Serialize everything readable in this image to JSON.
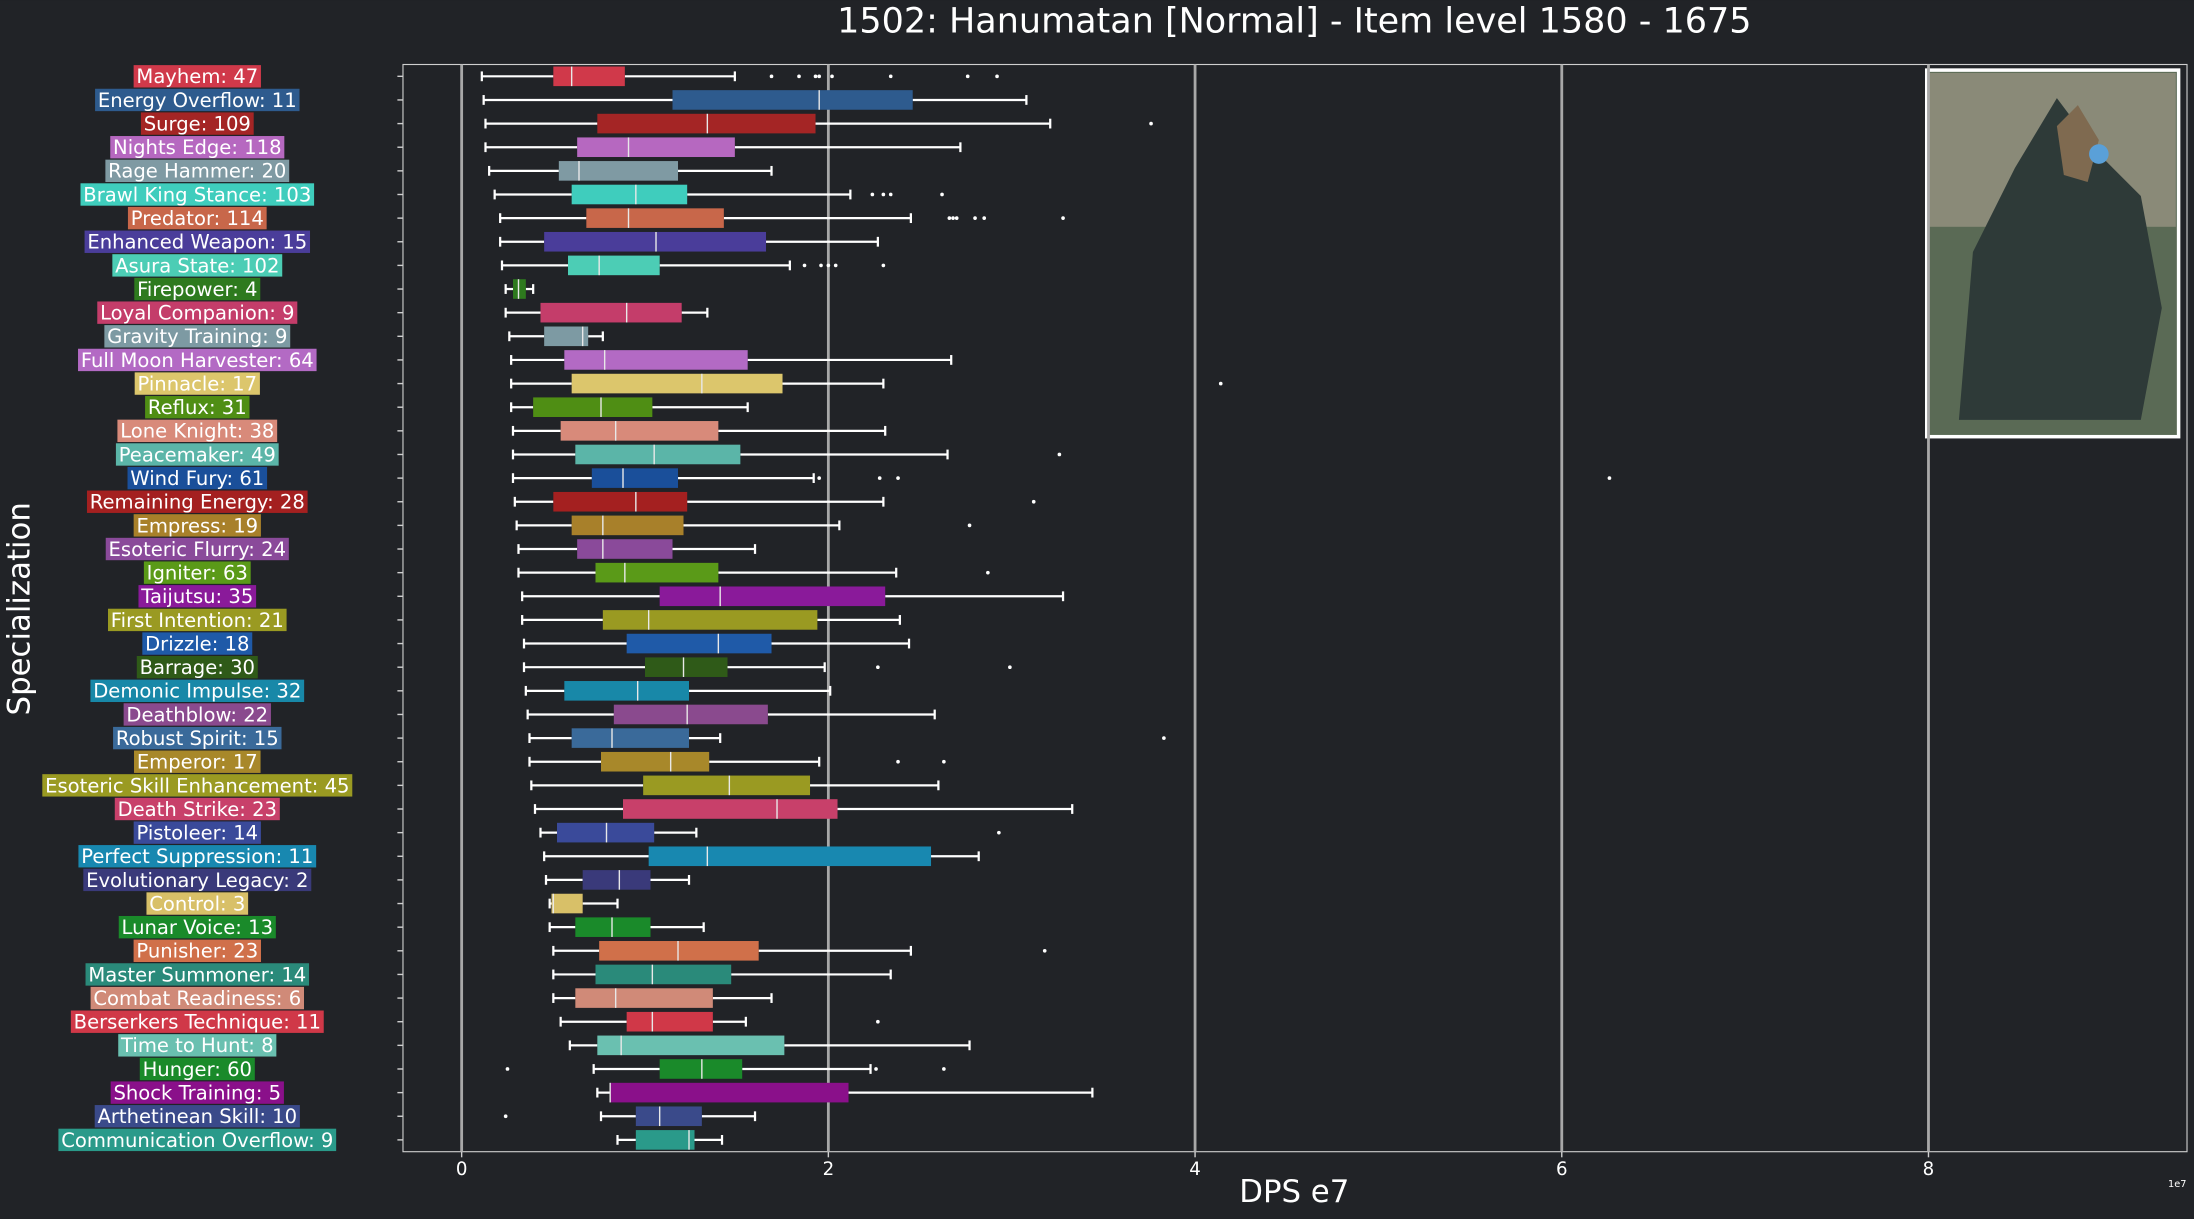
{
  "chart_data": {
    "type": "boxplot",
    "title": "1502: Hanumatan [Normal] - Item level 1580 - 1675",
    "xlabel": "DPS e7",
    "ylabel": "Specialization",
    "x_offset_label": "1e7",
    "xlim": [
      -0.32,
      9.41
    ],
    "xticks": [
      0,
      2,
      4,
      6,
      8
    ],
    "grid": true,
    "orientation": "horizontal",
    "categories": [
      "Mayhem: 47",
      "Energy Overflow: 11",
      "Surge: 109",
      "Nights Edge: 118",
      "Rage Hammer: 20",
      "Brawl King Stance: 103",
      "Predator: 114",
      "Enhanced Weapon: 15",
      "Asura State: 102",
      "Firepower: 4",
      "Loyal Companion: 9",
      "Gravity Training: 9",
      "Full Moon Harvester: 64",
      "Pinnacle: 17",
      "Reflux: 31",
      "Lone Knight: 38",
      "Peacemaker: 49",
      "Wind Fury: 61",
      "Remaining Energy: 28",
      "Empress: 19",
      "Esoteric Flurry: 24",
      "Igniter: 63",
      "Taijutsu: 35",
      "First Intention: 21",
      "Drizzle: 18",
      "Barrage: 30",
      "Demonic Impulse: 32",
      "Deathblow: 22",
      "Robust Spirit: 15",
      "Emperor: 17",
      "Esoteric Skill Enhancement: 45",
      "Death Strike: 23",
      "Pistoleer: 14",
      "Perfect Suppression: 11",
      "Evolutionary Legacy: 2",
      "Control: 3",
      "Lunar Voice: 13",
      "Punisher: 23",
      "Master Summoner: 14",
      "Combat Readiness: 6",
      "Berserkers Technique: 11",
      "Time to Hunt: 8",
      "Hunger: 60",
      "Shock Training: 5",
      "Arthetinean Skill: 10",
      "Communication Overflow: 9"
    ],
    "colors": [
      "#d0394a",
      "#2e5b8e",
      "#a42525",
      "#b668c0",
      "#7f9aa3",
      "#3fcdbd",
      "#c8674a",
      "#4a3d9a",
      "#4ccdb5",
      "#2e7a1e",
      "#c43d6a",
      "#7d9aa3",
      "#b36ac4",
      "#dcc66c",
      "#4f8e14",
      "#d88a7a",
      "#5bb5a8",
      "#1a4f9a",
      "#a42020",
      "#a8802a",
      "#8a4a9a",
      "#5a9a18",
      "#8a1a9a",
      "#9a9a22",
      "#1f5aa8",
      "#2f5a18",
      "#1888a8",
      "#8a4a8e",
      "#3a6a9a",
      "#a8882a",
      "#9a9a22",
      "#c8406a",
      "#3a4a9a",
      "#1888b0",
      "#3a3a7a",
      "#d8c068",
      "#1a8a2a",
      "#d0704a",
      "#2a8a7a",
      "#d08a78",
      "#d03848",
      "#6ac0b0",
      "#1a8a2a",
      "#8a108a",
      "#3a4a8a",
      "#2a9a8a"
    ],
    "boxes": [
      {
        "whislo": 0.11,
        "q1": 0.5,
        "med": 0.6,
        "q3": 0.89,
        "whishi": 1.49,
        "fliers": [
          1.69,
          1.84,
          1.93,
          1.95,
          2.02,
          2.34,
          2.76,
          2.92
        ]
      },
      {
        "whislo": 0.12,
        "q1": 1.15,
        "med": 1.95,
        "q3": 2.46,
        "whishi": 3.08,
        "fliers": []
      },
      {
        "whislo": 0.13,
        "q1": 0.74,
        "med": 1.34,
        "q3": 1.93,
        "whishi": 3.21,
        "fliers": [
          3.76
        ]
      },
      {
        "whislo": 0.13,
        "q1": 0.63,
        "med": 0.91,
        "q3": 1.49,
        "whishi": 2.72,
        "fliers": []
      },
      {
        "whislo": 0.15,
        "q1": 0.53,
        "med": 0.64,
        "q3": 1.18,
        "whishi": 1.69,
        "fliers": []
      },
      {
        "whislo": 0.18,
        "q1": 0.6,
        "med": 0.95,
        "q3": 1.23,
        "whishi": 2.12,
        "fliers": [
          2.24,
          2.3,
          2.34,
          2.62
        ]
      },
      {
        "whislo": 0.21,
        "q1": 0.68,
        "med": 0.91,
        "q3": 1.43,
        "whishi": 2.45,
        "fliers": [
          2.66,
          2.68,
          2.7,
          2.8,
          2.85,
          3.28
        ]
      },
      {
        "whislo": 0.21,
        "q1": 0.45,
        "med": 1.06,
        "q3": 1.66,
        "whishi": 2.27,
        "fliers": []
      },
      {
        "whislo": 0.22,
        "q1": 0.58,
        "med": 0.75,
        "q3": 1.08,
        "whishi": 1.79,
        "fliers": [
          1.87,
          1.96,
          2.0,
          2.04,
          2.3
        ]
      },
      {
        "whislo": 0.24,
        "q1": 0.28,
        "med": 0.31,
        "q3": 0.35,
        "whishi": 0.39,
        "fliers": []
      },
      {
        "whislo": 0.24,
        "q1": 0.43,
        "med": 0.9,
        "q3": 1.2,
        "whishi": 1.34,
        "fliers": []
      },
      {
        "whislo": 0.26,
        "q1": 0.45,
        "med": 0.66,
        "q3": 0.69,
        "whishi": 0.77,
        "fliers": []
      },
      {
        "whislo": 0.27,
        "q1": 0.56,
        "med": 0.78,
        "q3": 1.56,
        "whishi": 2.67,
        "fliers": []
      },
      {
        "whislo": 0.27,
        "q1": 0.6,
        "med": 1.31,
        "q3": 1.75,
        "whishi": 2.3,
        "fliers": [
          4.14
        ]
      },
      {
        "whislo": 0.27,
        "q1": 0.39,
        "med": 0.76,
        "q3": 1.04,
        "whishi": 1.56,
        "fliers": []
      },
      {
        "whislo": 0.28,
        "q1": 0.54,
        "med": 0.84,
        "q3": 1.4,
        "whishi": 2.31,
        "fliers": []
      },
      {
        "whislo": 0.28,
        "q1": 0.62,
        "med": 1.05,
        "q3": 1.52,
        "whishi": 2.65,
        "fliers": [
          3.26
        ]
      },
      {
        "whislo": 0.28,
        "q1": 0.71,
        "med": 0.88,
        "q3": 1.18,
        "whishi": 1.92,
        "fliers": [
          1.95,
          2.28,
          2.38,
          6.26
        ]
      },
      {
        "whislo": 0.29,
        "q1": 0.5,
        "med": 0.95,
        "q3": 1.23,
        "whishi": 2.3,
        "fliers": [
          3.12
        ]
      },
      {
        "whislo": 0.3,
        "q1": 0.6,
        "med": 0.77,
        "q3": 1.21,
        "whishi": 2.06,
        "fliers": [
          2.77
        ]
      },
      {
        "whislo": 0.31,
        "q1": 0.63,
        "med": 0.77,
        "q3": 1.15,
        "whishi": 1.6,
        "fliers": []
      },
      {
        "whislo": 0.31,
        "q1": 0.73,
        "med": 0.89,
        "q3": 1.4,
        "whishi": 2.37,
        "fliers": [
          2.87
        ]
      },
      {
        "whislo": 0.33,
        "q1": 1.08,
        "med": 1.41,
        "q3": 2.31,
        "whishi": 3.28,
        "fliers": []
      },
      {
        "whislo": 0.33,
        "q1": 0.77,
        "med": 1.02,
        "q3": 1.94,
        "whishi": 2.39,
        "fliers": []
      },
      {
        "whislo": 0.34,
        "q1": 0.9,
        "med": 1.4,
        "q3": 1.69,
        "whishi": 2.44,
        "fliers": []
      },
      {
        "whislo": 0.34,
        "q1": 1.0,
        "med": 1.21,
        "q3": 1.45,
        "whishi": 1.98,
        "fliers": [
          2.27,
          2.99
        ]
      },
      {
        "whislo": 0.35,
        "q1": 0.56,
        "med": 0.96,
        "q3": 1.24,
        "whishi": 2.01,
        "fliers": []
      },
      {
        "whislo": 0.36,
        "q1": 0.83,
        "med": 1.23,
        "q3": 1.67,
        "whishi": 2.58,
        "fliers": []
      },
      {
        "whislo": 0.37,
        "q1": 0.6,
        "med": 0.82,
        "q3": 1.24,
        "whishi": 1.41,
        "fliers": [
          3.83
        ]
      },
      {
        "whislo": 0.37,
        "q1": 0.76,
        "med": 1.14,
        "q3": 1.35,
        "whishi": 1.95,
        "fliers": [
          2.38,
          2.63
        ]
      },
      {
        "whislo": 0.38,
        "q1": 0.99,
        "med": 1.46,
        "q3": 1.9,
        "whishi": 2.6,
        "fliers": []
      },
      {
        "whislo": 0.4,
        "q1": 0.88,
        "med": 1.72,
        "q3": 2.05,
        "whishi": 3.33,
        "fliers": []
      },
      {
        "whislo": 0.43,
        "q1": 0.52,
        "med": 0.79,
        "q3": 1.05,
        "whishi": 1.28,
        "fliers": [
          2.93
        ]
      },
      {
        "whislo": 0.45,
        "q1": 1.02,
        "med": 1.34,
        "q3": 2.56,
        "whishi": 2.82,
        "fliers": []
      },
      {
        "whislo": 0.46,
        "q1": 0.66,
        "med": 0.86,
        "q3": 1.03,
        "whishi": 1.24,
        "fliers": []
      },
      {
        "whislo": 0.48,
        "q1": 0.49,
        "med": 0.5,
        "q3": 0.66,
        "whishi": 0.85,
        "fliers": []
      },
      {
        "whislo": 0.48,
        "q1": 0.62,
        "med": 0.82,
        "q3": 1.03,
        "whishi": 1.32,
        "fliers": []
      },
      {
        "whislo": 0.5,
        "q1": 0.75,
        "med": 1.18,
        "q3": 1.62,
        "whishi": 2.45,
        "fliers": [
          3.18
        ]
      },
      {
        "whislo": 0.5,
        "q1": 0.73,
        "med": 1.04,
        "q3": 1.47,
        "whishi": 2.34,
        "fliers": []
      },
      {
        "whislo": 0.5,
        "q1": 0.62,
        "med": 0.84,
        "q3": 1.37,
        "whishi": 1.69,
        "fliers": []
      },
      {
        "whislo": 0.54,
        "q1": 0.9,
        "med": 1.04,
        "q3": 1.37,
        "whishi": 1.55,
        "fliers": [
          2.27
        ]
      },
      {
        "whislo": 0.59,
        "q1": 0.74,
        "med": 0.87,
        "q3": 1.76,
        "whishi": 2.77,
        "fliers": []
      },
      {
        "whislo": 0.72,
        "q1": 1.08,
        "med": 1.31,
        "q3": 1.53,
        "whishi": 2.23,
        "fliers": [
          0.25,
          2.26,
          2.63
        ]
      },
      {
        "whislo": 0.74,
        "q1": 0.81,
        "med": 0.81,
        "q3": 2.11,
        "whishi": 3.44,
        "fliers": []
      },
      {
        "whislo": 0.76,
        "q1": 0.95,
        "med": 1.08,
        "q3": 1.31,
        "whishi": 1.6,
        "fliers": [
          0.24
        ]
      },
      {
        "whislo": 0.85,
        "q1": 0.95,
        "med": 1.24,
        "q3": 1.27,
        "whishi": 1.42,
        "fliers": []
      }
    ]
  }
}
